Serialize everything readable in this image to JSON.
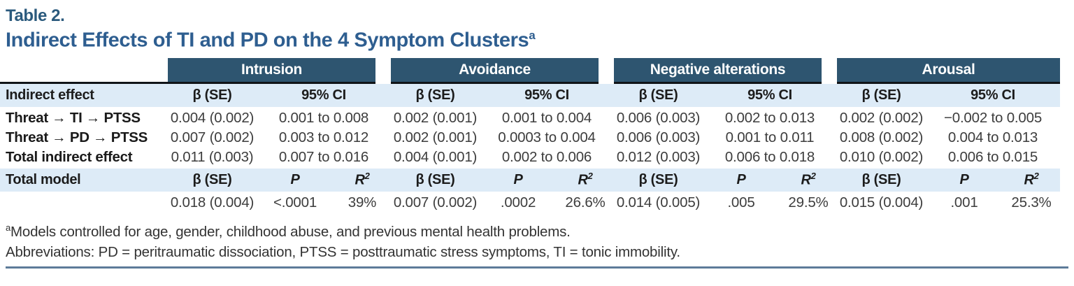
{
  "title": "Table 2.",
  "subtitle": "Indirect Effects of TI and PD on the 4 Symptom Clusters",
  "subtitle_sup": "a",
  "colors": {
    "header_band": "#2e5570",
    "light_row": "#ddebf7",
    "title_blue": "#2b5a7d",
    "subtitle_blue": "#2e5e90",
    "bottom_rule": "#5d7b99"
  },
  "groups": [
    "Intrusion",
    "Avoidance",
    "Negative alterations",
    "Arousal"
  ],
  "indirect": {
    "header_label": "Indirect effect",
    "beta_header": "β (SE)",
    "ci_header": "95% CI",
    "rows": [
      {
        "label": "Threat → TI → PTSS",
        "cells": [
          {
            "beta": "0.004 (0.002)",
            "ci": "0.001 to 0.008"
          },
          {
            "beta": "0.002 (0.001)",
            "ci": "0.001 to 0.004"
          },
          {
            "beta": "0.006 (0.003)",
            "ci": "0.002 to 0.013"
          },
          {
            "beta": "0.002 (0.002)",
            "ci": "−0.002 to 0.005"
          }
        ]
      },
      {
        "label": "Threat → PD → PTSS",
        "cells": [
          {
            "beta": "0.007 (0.002)",
            "ci": "0.003 to 0.012"
          },
          {
            "beta": "0.002 (0.001)",
            "ci": "0.0003 to 0.004"
          },
          {
            "beta": "0.006 (0.003)",
            "ci": "0.001 to 0.011"
          },
          {
            "beta": "0.008 (0.002)",
            "ci": "0.004 to 0.013"
          }
        ]
      },
      {
        "label": "Total indirect effect",
        "cells": [
          {
            "beta": "0.011 (0.003)",
            "ci": "0.007 to 0.016"
          },
          {
            "beta": "0.004 (0.001)",
            "ci": "0.002 to 0.006"
          },
          {
            "beta": "0.012 (0.003)",
            "ci": "0.006 to 0.018"
          },
          {
            "beta": "0.010 (0.002)",
            "ci": "0.006 to 0.015"
          }
        ]
      }
    ]
  },
  "total_model": {
    "label": "Total model",
    "beta_header": "β (SE)",
    "p_header": "P",
    "r2_header": "R",
    "r2_sup": "2",
    "values": [
      {
        "beta": "0.018 (0.004)",
        "p": "<.0001",
        "r2": "39%"
      },
      {
        "beta": "0.007 (0.002)",
        "p": ".0002",
        "r2": "26.6%"
      },
      {
        "beta": "0.014 (0.005)",
        "p": ".005",
        "r2": "29.5%"
      },
      {
        "beta": "0.015 (0.004)",
        "p": ".001",
        "r2": "25.3%"
      }
    ]
  },
  "footnotes": {
    "note_sup": "a",
    "note": "Models controlled for age, gender, childhood abuse, and previous mental health problems.",
    "abbreviations": "Abbreviations: PD = peritraumatic dissociation, PTSS = posttraumatic stress symptoms, TI = tonic immobility."
  }
}
